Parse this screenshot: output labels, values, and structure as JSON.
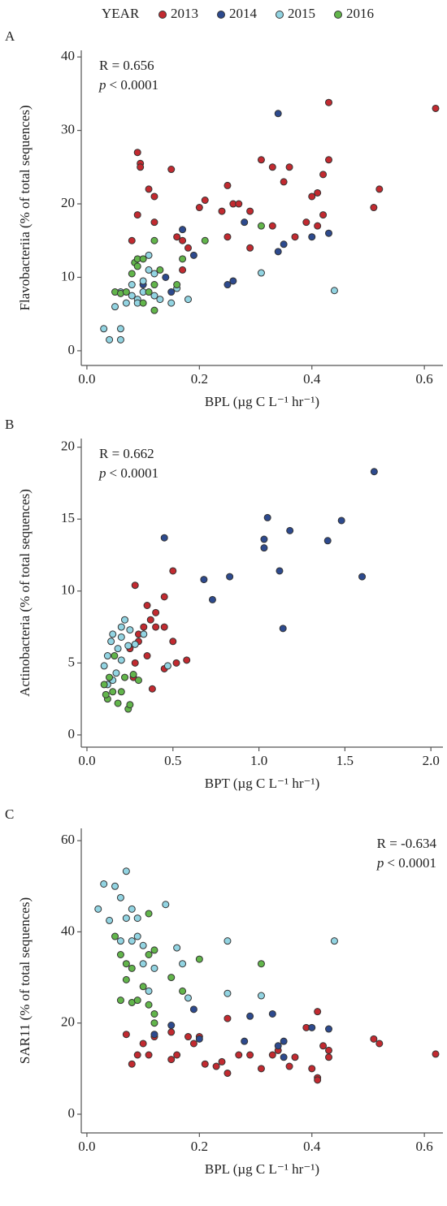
{
  "legend": {
    "title": "YEAR"
  },
  "chart_data": [
    {
      "type": "scatter",
      "panel_label": "A",
      "x_label": "BPL (µg C L⁻¹ hr⁻¹)",
      "y_label": "Flavobacteriia (% of total sequences)",
      "annotation": {
        "r": "R = 0.656",
        "p": "p",
        "p_value": "< 0.0001",
        "corner": "upper left"
      },
      "xlim": [
        -0.01,
        0.633
      ],
      "ylim": [
        -2,
        40.9
      ],
      "xticks": [
        {
          "value": 0,
          "label": "0.0"
        },
        0.2,
        0.4,
        0.6
      ],
      "yticks": [
        0,
        10,
        20,
        30,
        40
      ],
      "series": [
        {
          "name": "2013",
          "color": "#c22a30",
          "x": [
            0.09,
            0.095,
            0.095,
            0.11,
            0.12,
            0.15,
            0.08,
            0.09,
            0.16,
            0.17,
            0.18,
            0.2,
            0.21,
            0.24,
            0.25,
            0.25,
            0.26,
            0.27,
            0.29,
            0.29,
            0.31,
            0.33,
            0.33,
            0.35,
            0.36,
            0.37,
            0.39,
            0.4,
            0.41,
            0.42,
            0.42,
            0.43,
            0.43,
            0.51,
            0.52,
            0.62,
            0.17,
            0.12,
            0.41
          ],
          "values": [
            27,
            25.5,
            25,
            22,
            21,
            24.7,
            15,
            18.5,
            15.5,
            15,
            14,
            19.5,
            20.5,
            19,
            22.5,
            15.5,
            20,
            20,
            14,
            19,
            26,
            25,
            17,
            23,
            25,
            15.5,
            17.5,
            21,
            21.5,
            24,
            18.5,
            33.8,
            26,
            19.5,
            22,
            33,
            11,
            17.5,
            17
          ]
        },
        {
          "name": "2014",
          "color": "#2d4a8e",
          "x": [
            0.34,
            0.43,
            0.4,
            0.35,
            0.34,
            0.28,
            0.19,
            0.17,
            0.26,
            0.25,
            0.15,
            0.14,
            0.1
          ],
          "values": [
            32.3,
            16,
            15.5,
            14.5,
            13.5,
            17.5,
            13,
            16.5,
            9.5,
            9,
            8,
            10,
            9
          ]
        },
        {
          "name": "2015",
          "color": "#92d4e2",
          "x": [
            0.03,
            0.04,
            0.06,
            0.06,
            0.05,
            0.06,
            0.07,
            0.08,
            0.09,
            0.09,
            0.1,
            0.1,
            0.11,
            0.12,
            0.13,
            0.15,
            0.16,
            0.18,
            0.44,
            0.31,
            0.12,
            0.08,
            0.11
          ],
          "values": [
            3,
            1.5,
            1.5,
            3,
            6,
            8,
            6.5,
            7.5,
            7,
            6.5,
            8,
            9.5,
            13,
            10.5,
            7,
            6.5,
            8.5,
            7,
            8.2,
            10.6,
            7.5,
            9,
            11
          ]
        },
        {
          "name": "2016",
          "color": "#62b54b",
          "x": [
            0.05,
            0.06,
            0.08,
            0.085,
            0.09,
            0.09,
            0.1,
            0.11,
            0.12,
            0.12,
            0.12,
            0.13,
            0.16,
            0.17,
            0.21,
            0.31,
            0.1,
            0.07
          ],
          "values": [
            8,
            7.8,
            10.5,
            12,
            12.5,
            11.5,
            12.5,
            8,
            15,
            9,
            5.5,
            11,
            9,
            12.5,
            15,
            17,
            6.5,
            8
          ]
        }
      ]
    },
    {
      "type": "scatter",
      "panel_label": "B",
      "x_label": "BPT (µg C L⁻¹ hr⁻¹)",
      "y_label": "Actinobacteria (% of total sequences)",
      "annotation": {
        "r": "R = 0.662",
        "p": "p",
        "p_value": "< 0.0001",
        "corner": "upper left"
      },
      "xlim": [
        -0.033,
        2.07
      ],
      "ylim": [
        -0.85,
        20.6
      ],
      "xticks": [
        {
          "value": 0,
          "label": "0.0"
        },
        0.5,
        {
          "value": 1,
          "label": "1.0"
        },
        1.5,
        {
          "value": 2,
          "label": "2.0"
        }
      ],
      "yticks": [
        0,
        5,
        10,
        15,
        20
      ],
      "series": [
        {
          "name": "2013",
          "color": "#c22a30",
          "x": [
            0.28,
            0.5,
            0.45,
            0.35,
            0.4,
            0.37,
            0.33,
            0.45,
            0.5,
            0.3,
            0.25,
            0.35,
            0.28,
            0.45,
            0.52,
            0.58,
            0.38,
            0.27,
            0.3,
            0.4
          ],
          "values": [
            10.4,
            11.4,
            9.6,
            9,
            8.5,
            8,
            7.5,
            7.5,
            6.5,
            6.5,
            6,
            5.5,
            5,
            4.6,
            5,
            5.2,
            3.2,
            4,
            7,
            7.5
          ]
        },
        {
          "name": "2014",
          "color": "#2d4a8e",
          "x": [
            0.45,
            0.68,
            0.73,
            0.83,
            1.03,
            1.05,
            1.03,
            1.18,
            1.12,
            1.14,
            1.4,
            1.48,
            1.6,
            1.67
          ],
          "values": [
            13.7,
            10.8,
            9.4,
            11,
            13.6,
            15.1,
            13,
            14.2,
            11.4,
            7.4,
            13.5,
            14.9,
            11,
            18.3
          ]
        },
        {
          "name": "2015",
          "color": "#92d4e2",
          "x": [
            0.1,
            0.12,
            0.14,
            0.15,
            0.18,
            0.2,
            0.2,
            0.22,
            0.25,
            0.28,
            0.33,
            0.17,
            0.15,
            0.2,
            0.24,
            0.47,
            0.12
          ],
          "values": [
            4.8,
            5.5,
            6.5,
            7,
            6,
            7.5,
            6.8,
            8,
            7.3,
            6.3,
            7,
            4.3,
            3.8,
            5.2,
            6.2,
            4.8,
            3.5
          ]
        },
        {
          "name": "2016",
          "color": "#62b54b",
          "x": [
            0.1,
            0.12,
            0.15,
            0.18,
            0.2,
            0.13,
            0.16,
            0.22,
            0.24,
            0.25,
            0.27,
            0.11,
            0.3
          ],
          "values": [
            3.5,
            2.5,
            3,
            2.2,
            3,
            4,
            5.5,
            4,
            1.8,
            2.1,
            4.2,
            2.8,
            3.8
          ]
        }
      ]
    },
    {
      "type": "scatter",
      "panel_label": "C",
      "x_label": "BPL (µg C L⁻¹ hr⁻¹)",
      "y_label": "SAR11 (% of total sequences)",
      "annotation": {
        "r": "R = -0.634",
        "p": "p",
        "p_value": "< 0.0001",
        "corner": "upper right"
      },
      "xlim": [
        -0.01,
        0.633
      ],
      "ylim": [
        -4.1,
        62.7
      ],
      "xticks": [
        {
          "value": 0,
          "label": "0.0"
        },
        0.2,
        0.4,
        0.6
      ],
      "yticks": [
        0,
        20,
        40,
        60
      ],
      "series": [
        {
          "name": "2013",
          "color": "#c22a30",
          "x": [
            0.07,
            0.08,
            0.09,
            0.1,
            0.11,
            0.12,
            0.15,
            0.15,
            0.16,
            0.18,
            0.19,
            0.2,
            0.21,
            0.23,
            0.24,
            0.25,
            0.25,
            0.27,
            0.29,
            0.31,
            0.33,
            0.34,
            0.36,
            0.37,
            0.39,
            0.4,
            0.41,
            0.41,
            0.41,
            0.42,
            0.43,
            0.43,
            0.51,
            0.52,
            0.62
          ],
          "values": [
            17.5,
            11,
            13,
            15.5,
            13,
            17,
            18,
            12,
            13,
            17,
            15.5,
            17,
            11,
            10.5,
            11.5,
            21,
            9,
            13,
            13,
            10,
            13,
            14,
            10.5,
            12.5,
            19,
            10,
            22.5,
            8,
            7.5,
            15,
            14,
            12.5,
            16.5,
            15.5,
            13.2
          ]
        },
        {
          "name": "2014",
          "color": "#2d4a8e",
          "x": [
            0.15,
            0.19,
            0.28,
            0.29,
            0.33,
            0.34,
            0.35,
            0.35,
            0.4,
            0.43,
            0.12,
            0.2
          ],
          "values": [
            19.5,
            23,
            16,
            21.5,
            22,
            15,
            16,
            12.5,
            19,
            18.7,
            17.5,
            16.5
          ]
        },
        {
          "name": "2015",
          "color": "#92d4e2",
          "x": [
            0.02,
            0.03,
            0.05,
            0.04,
            0.06,
            0.07,
            0.07,
            0.08,
            0.06,
            0.08,
            0.09,
            0.1,
            0.1,
            0.12,
            0.14,
            0.16,
            0.17,
            0.18,
            0.25,
            0.25,
            0.31,
            0.44,
            0.09,
            0.11
          ],
          "values": [
            45,
            50.5,
            50,
            42.5,
            47.5,
            53.3,
            43,
            45,
            38,
            38,
            39,
            37,
            33,
            32,
            46,
            36.5,
            33,
            25.5,
            38,
            26.5,
            26,
            38,
            43,
            27
          ]
        },
        {
          "name": "2016",
          "color": "#62b54b",
          "x": [
            0.05,
            0.06,
            0.07,
            0.08,
            0.07,
            0.06,
            0.08,
            0.1,
            0.11,
            0.12,
            0.11,
            0.12,
            0.11,
            0.15,
            0.17,
            0.2,
            0.31,
            0.09,
            0.12
          ],
          "values": [
            39,
            35,
            33,
            32,
            29.5,
            25,
            24.5,
            28,
            24,
            22,
            35,
            36,
            44,
            30,
            27,
            34,
            33,
            25,
            20
          ]
        }
      ]
    }
  ]
}
